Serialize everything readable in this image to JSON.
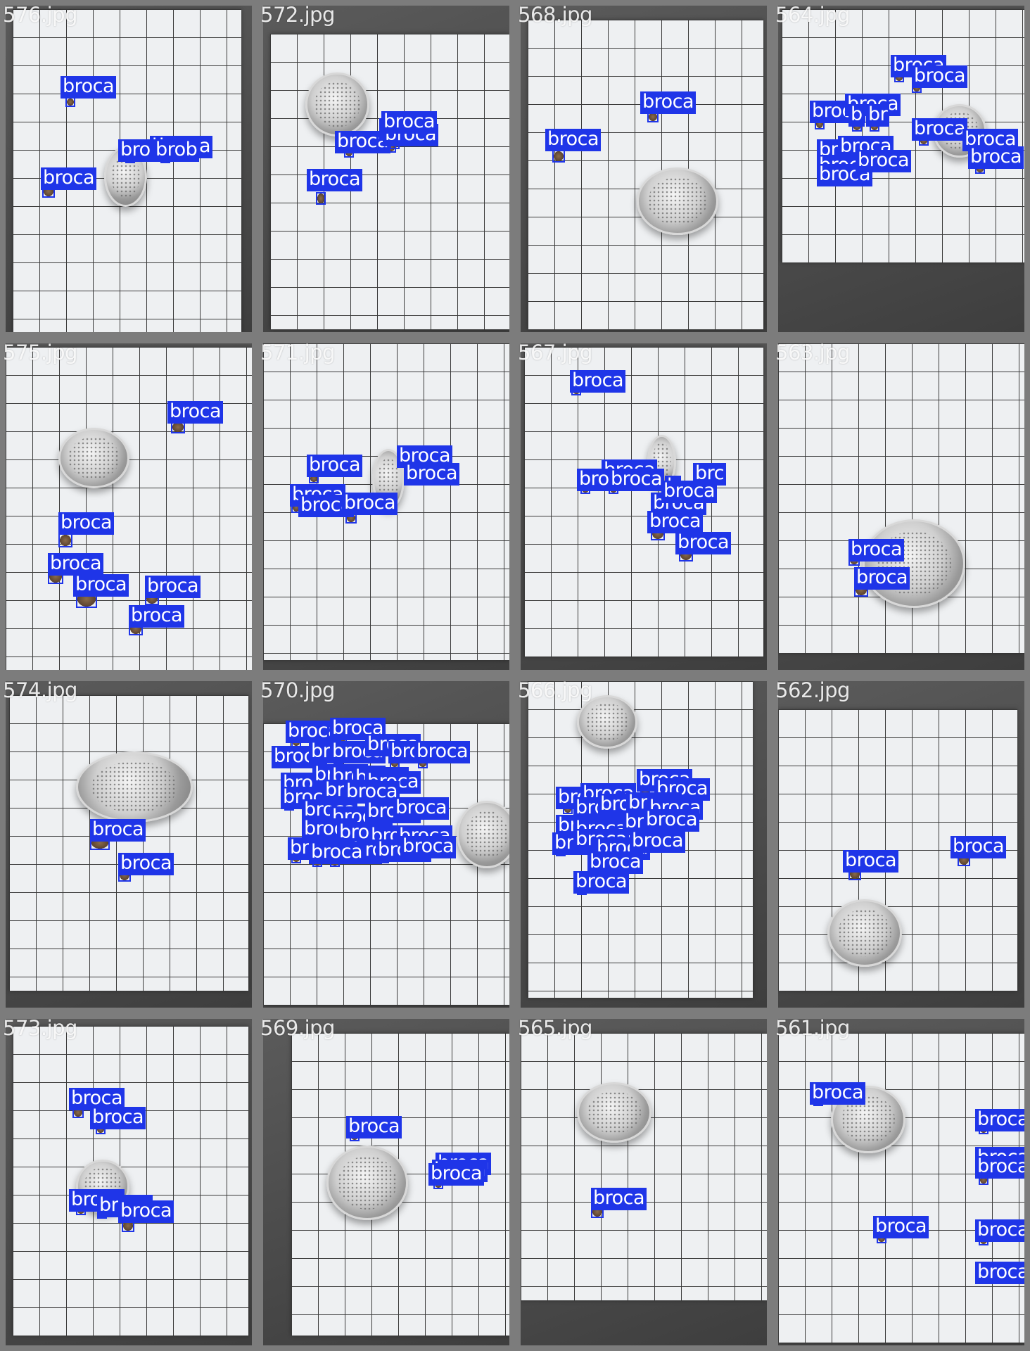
{
  "label_color": "#1f35e8",
  "frame_color": "#7c7c7c",
  "class_label": "broca",
  "images": [
    {
      "file": "576.jpg",
      "detections": 6
    },
    {
      "file": "572.jpg",
      "detections": 5
    },
    {
      "file": "568.jpg",
      "detections": 2
    },
    {
      "file": "564.jpg",
      "detections": 14
    },
    {
      "file": "575.jpg",
      "detections": 6
    },
    {
      "file": "571.jpg",
      "detections": 6
    },
    {
      "file": "567.jpg",
      "detections": 10
    },
    {
      "file": "563.jpg",
      "detections": 2
    },
    {
      "file": "574.jpg",
      "detections": 2
    },
    {
      "file": "570.jpg",
      "detections": 30
    },
    {
      "file": "566.jpg",
      "detections": 18
    },
    {
      "file": "562.jpg",
      "detections": 2
    },
    {
      "file": "573.jpg",
      "detections": 5
    },
    {
      "file": "569.jpg",
      "detections": 4
    },
    {
      "file": "565.jpg",
      "detections": 1
    },
    {
      "file": "561.jpg",
      "detections": 7
    }
  ]
}
